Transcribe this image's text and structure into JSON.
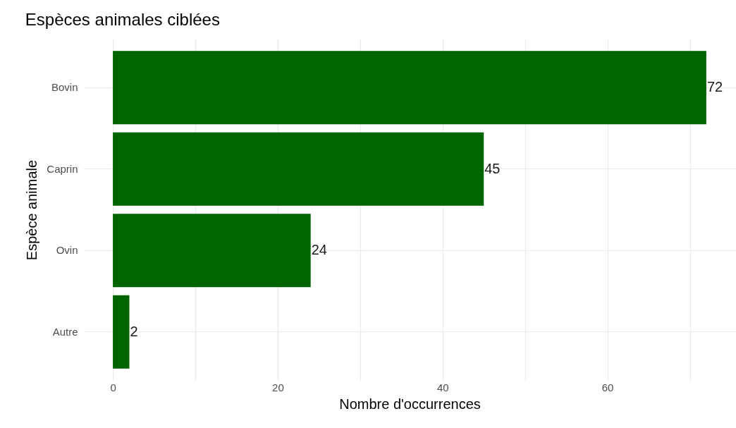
{
  "chart_data": {
    "type": "bar",
    "orientation": "horizontal",
    "title": "Espèces animales ciblées",
    "xlabel": "Nombre d'occurrences",
    "ylabel": "Espèce animale",
    "categories": [
      "Bovin",
      "Caprin",
      "Ovin",
      "Autre"
    ],
    "values": [
      72,
      45,
      24,
      2
    ],
    "color": "#006400",
    "xlim": [
      -3.6,
      75.6
    ],
    "xticks": [
      0,
      {
        "value": 10,
        "label": null
      },
      20,
      {
        "value": 30,
        "label": null
      },
      40,
      {
        "value": 50,
        "label": null
      },
      60,
      {
        "value": 70,
        "label": null
      }
    ],
    "grid": true,
    "data_labels": true
  }
}
